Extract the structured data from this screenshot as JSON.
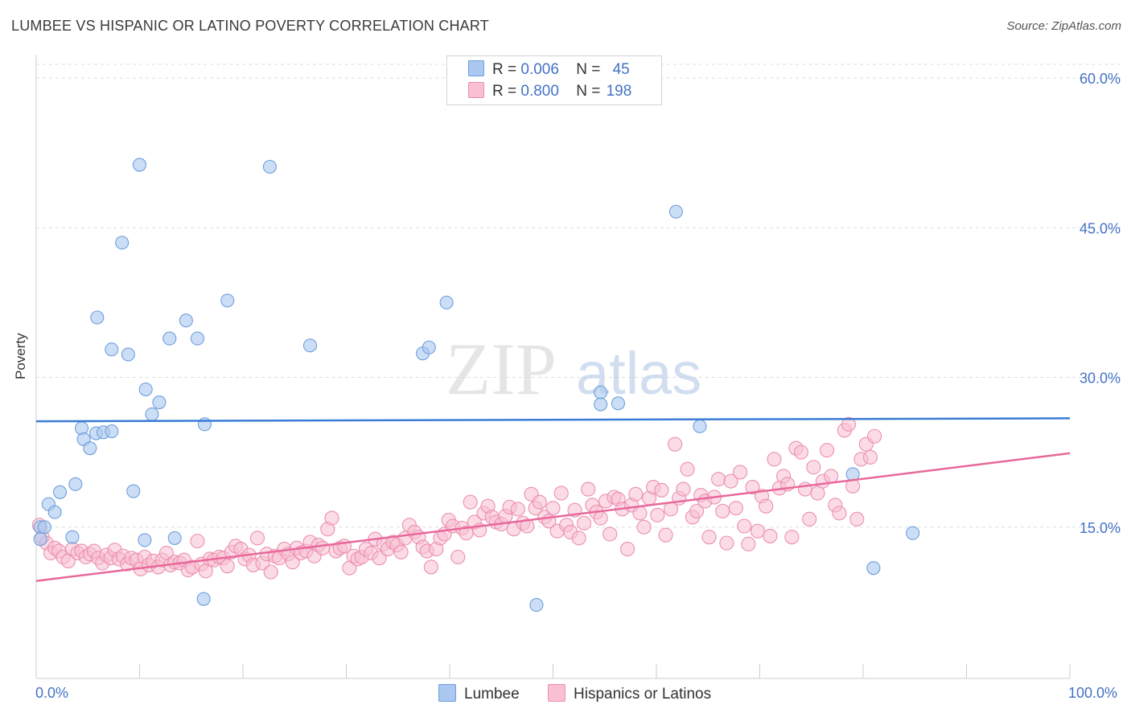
{
  "header": {
    "title": "LUMBEE VS HISPANIC OR LATINO POVERTY CORRELATION CHART",
    "source": "Source: ZipAtlas.com"
  },
  "watermark": {
    "zip": "ZIP",
    "atlas": "atlas"
  },
  "legend_top": [
    {
      "series": "Lumbee",
      "r_label": "R =",
      "r_value": "0.006",
      "n_label": "N =",
      "n_value": "45",
      "color": "#aac8f0",
      "border": "#6e9fdc"
    },
    {
      "series": "Hispanics or Latinos",
      "r_label": "R =",
      "r_value": "0.800",
      "n_label": "N =",
      "n_value": "198",
      "color": "#f8c0d2",
      "border": "#ec8fae"
    }
  ],
  "legend_bottom": [
    {
      "label": "Lumbee",
      "color": "#aac8f0",
      "border": "#6e9fdc"
    },
    {
      "label": "Hispanics or Latinos",
      "color": "#f8c0d2",
      "border": "#ec8fae"
    }
  ],
  "chart_data": {
    "type": "scatter",
    "title": "LUMBEE VS HISPANIC OR LATINO POVERTY CORRELATION CHART",
    "ylabel": "Poverty",
    "xlim": [
      0,
      100
    ],
    "ylim": [
      0,
      60
    ],
    "x_tick_labels": [
      "0.0%",
      "100.0%"
    ],
    "y_ticks": [
      15,
      30,
      45,
      60
    ],
    "y_tick_labels": [
      "15.0%",
      "30.0%",
      "45.0%",
      "60.0%"
    ],
    "grid": true,
    "colors": {
      "lumbee_line": "#3a7bd5",
      "hispanic_line": "#e8689a",
      "tick_label": "#4472c4"
    },
    "series": [
      {
        "name": "Lumbee",
        "trend": {
          "x": [
            0,
            100
          ],
          "y": [
            25.6,
            25.9
          ]
        },
        "points": [
          [
            0.4,
            15.0
          ],
          [
            0.8,
            15.0
          ],
          [
            1.2,
            17.3
          ],
          [
            1.8,
            16.5
          ],
          [
            2.3,
            18.5
          ],
          [
            3.5,
            14.0
          ],
          [
            3.8,
            19.3
          ],
          [
            4.4,
            24.9
          ],
          [
            4.6,
            23.8
          ],
          [
            5.2,
            22.9
          ],
          [
            5.8,
            24.4
          ],
          [
            6.5,
            24.5
          ],
          [
            7.3,
            24.6
          ],
          [
            5.9,
            36.0
          ],
          [
            7.3,
            32.8
          ],
          [
            8.3,
            43.5
          ],
          [
            8.9,
            32.3
          ],
          [
            9.4,
            18.6
          ],
          [
            10.0,
            51.3
          ],
          [
            10.6,
            28.8
          ],
          [
            10.5,
            13.7
          ],
          [
            11.2,
            26.3
          ],
          [
            11.9,
            27.5
          ],
          [
            12.9,
            33.9
          ],
          [
            13.4,
            13.9
          ],
          [
            14.5,
            35.7
          ],
          [
            15.6,
            33.9
          ],
          [
            16.3,
            25.3
          ],
          [
            16.2,
            7.8
          ],
          [
            18.5,
            37.7
          ],
          [
            22.6,
            51.1
          ],
          [
            26.5,
            33.2
          ],
          [
            37.4,
            32.4
          ],
          [
            38.0,
            33.0
          ],
          [
            39.7,
            37.5
          ],
          [
            48.4,
            7.2
          ],
          [
            54.6,
            28.5
          ],
          [
            54.6,
            27.3
          ],
          [
            56.3,
            27.4
          ],
          [
            61.9,
            46.6
          ],
          [
            64.2,
            25.1
          ],
          [
            79.0,
            20.3
          ],
          [
            81.0,
            10.9
          ],
          [
            84.8,
            14.4
          ],
          [
            0.4,
            13.8
          ]
        ]
      },
      {
        "name": "Hispanics or Latinos",
        "trend": {
          "x": [
            0,
            100
          ],
          "y": [
            9.6,
            22.4
          ]
        },
        "points": [
          [
            0.3,
            15.2
          ],
          [
            0.6,
            14.0
          ],
          [
            1.0,
            13.4
          ],
          [
            1.4,
            12.4
          ],
          [
            1.8,
            12.9
          ],
          [
            2.2,
            12.6
          ],
          [
            2.6,
            12.0
          ],
          [
            3.1,
            11.6
          ],
          [
            3.5,
            12.8
          ],
          [
            4.0,
            12.4
          ],
          [
            4.4,
            12.6
          ],
          [
            4.8,
            12.0
          ],
          [
            5.2,
            12.3
          ],
          [
            5.6,
            12.6
          ],
          [
            6.0,
            11.9
          ],
          [
            6.4,
            11.4
          ],
          [
            6.8,
            12.2
          ],
          [
            7.2,
            11.9
          ],
          [
            7.6,
            12.7
          ],
          [
            8.0,
            11.8
          ],
          [
            8.4,
            12.1
          ],
          [
            8.8,
            11.3
          ],
          [
            9.2,
            11.9
          ],
          [
            9.7,
            11.7
          ],
          [
            10.1,
            10.8
          ],
          [
            10.5,
            12.0
          ],
          [
            10.9,
            11.2
          ],
          [
            11.3,
            11.6
          ],
          [
            11.8,
            11.0
          ],
          [
            12.2,
            11.7
          ],
          [
            12.6,
            12.4
          ],
          [
            13.0,
            11.2
          ],
          [
            13.4,
            11.5
          ],
          [
            13.9,
            11.4
          ],
          [
            14.3,
            11.7
          ],
          [
            14.7,
            10.7
          ],
          [
            15.1,
            11.0
          ],
          [
            15.6,
            13.6
          ],
          [
            16.0,
            11.3
          ],
          [
            16.4,
            10.6
          ],
          [
            16.8,
            11.8
          ],
          [
            17.2,
            11.7
          ],
          [
            17.7,
            12.0
          ],
          [
            18.1,
            11.9
          ],
          [
            18.5,
            11.1
          ],
          [
            18.9,
            12.5
          ],
          [
            19.3,
            13.1
          ],
          [
            19.8,
            12.8
          ],
          [
            20.2,
            11.8
          ],
          [
            20.6,
            12.2
          ],
          [
            21.0,
            11.2
          ],
          [
            21.4,
            13.9
          ],
          [
            21.9,
            11.4
          ],
          [
            22.3,
            12.3
          ],
          [
            22.7,
            10.5
          ],
          [
            23.1,
            12.1
          ],
          [
            23.5,
            11.9
          ],
          [
            24.0,
            12.8
          ],
          [
            24.4,
            12.3
          ],
          [
            24.8,
            11.5
          ],
          [
            25.2,
            12.9
          ],
          [
            25.6,
            12.4
          ],
          [
            26.1,
            12.6
          ],
          [
            26.5,
            13.5
          ],
          [
            26.9,
            12.1
          ],
          [
            27.3,
            13.2
          ],
          [
            27.7,
            12.9
          ],
          [
            28.2,
            14.8
          ],
          [
            28.6,
            15.9
          ],
          [
            29.0,
            12.6
          ],
          [
            29.4,
            12.9
          ],
          [
            29.8,
            13.1
          ],
          [
            30.3,
            10.9
          ],
          [
            30.7,
            12.1
          ],
          [
            31.1,
            11.8
          ],
          [
            31.5,
            12.0
          ],
          [
            31.9,
            12.8
          ],
          [
            32.4,
            12.4
          ],
          [
            32.8,
            13.8
          ],
          [
            33.2,
            11.9
          ],
          [
            33.6,
            13.3
          ],
          [
            34.0,
            12.8
          ],
          [
            34.5,
            13.5
          ],
          [
            34.9,
            13.2
          ],
          [
            35.3,
            12.5
          ],
          [
            35.7,
            13.9
          ],
          [
            36.1,
            15.2
          ],
          [
            36.6,
            14.5
          ],
          [
            37.0,
            14.0
          ],
          [
            37.4,
            13.0
          ],
          [
            37.8,
            12.6
          ],
          [
            38.2,
            11.0
          ],
          [
            38.7,
            12.8
          ],
          [
            39.1,
            13.9
          ],
          [
            39.5,
            14.3
          ],
          [
            39.9,
            15.7
          ],
          [
            40.3,
            15.1
          ],
          [
            40.8,
            12.0
          ],
          [
            41.2,
            14.9
          ],
          [
            41.6,
            14.4
          ],
          [
            42.0,
            17.5
          ],
          [
            42.4,
            15.5
          ],
          [
            42.9,
            14.7
          ],
          [
            43.3,
            16.4
          ],
          [
            43.7,
            17.1
          ],
          [
            44.1,
            16.0
          ],
          [
            44.5,
            15.5
          ],
          [
            45.0,
            15.3
          ],
          [
            45.4,
            16.1
          ],
          [
            45.8,
            17.0
          ],
          [
            46.2,
            14.8
          ],
          [
            46.6,
            16.8
          ],
          [
            47.1,
            15.4
          ],
          [
            47.5,
            15.1
          ],
          [
            47.9,
            18.3
          ],
          [
            48.3,
            16.9
          ],
          [
            48.7,
            17.5
          ],
          [
            49.2,
            16.0
          ],
          [
            49.6,
            15.6
          ],
          [
            50.0,
            16.9
          ],
          [
            50.4,
            14.6
          ],
          [
            50.8,
            18.4
          ],
          [
            51.3,
            15.2
          ],
          [
            51.7,
            14.5
          ],
          [
            52.1,
            16.7
          ],
          [
            52.5,
            13.9
          ],
          [
            53.0,
            15.4
          ],
          [
            53.4,
            18.8
          ],
          [
            53.8,
            17.2
          ],
          [
            54.2,
            16.5
          ],
          [
            54.6,
            15.9
          ],
          [
            55.1,
            17.6
          ],
          [
            55.5,
            14.3
          ],
          [
            55.9,
            18.0
          ],
          [
            56.3,
            17.8
          ],
          [
            56.7,
            16.8
          ],
          [
            57.2,
            12.8
          ],
          [
            57.6,
            17.2
          ],
          [
            58.0,
            18.3
          ],
          [
            58.4,
            16.4
          ],
          [
            58.8,
            15.0
          ],
          [
            59.3,
            17.9
          ],
          [
            59.7,
            19.0
          ],
          [
            60.1,
            16.2
          ],
          [
            60.5,
            18.7
          ],
          [
            60.9,
            14.2
          ],
          [
            61.4,
            16.8
          ],
          [
            61.8,
            23.3
          ],
          [
            62.2,
            17.9
          ],
          [
            62.6,
            18.8
          ],
          [
            63.0,
            20.8
          ],
          [
            63.5,
            16.0
          ],
          [
            63.9,
            16.6
          ],
          [
            64.3,
            18.2
          ],
          [
            64.7,
            17.6
          ],
          [
            65.1,
            14.0
          ],
          [
            65.6,
            18.0
          ],
          [
            66.0,
            19.8
          ],
          [
            66.4,
            16.6
          ],
          [
            66.8,
            13.4
          ],
          [
            67.2,
            19.6
          ],
          [
            67.7,
            16.9
          ],
          [
            68.1,
            20.5
          ],
          [
            68.5,
            15.1
          ],
          [
            68.9,
            13.3
          ],
          [
            69.3,
            19.0
          ],
          [
            69.8,
            14.6
          ],
          [
            70.2,
            18.1
          ],
          [
            70.6,
            17.1
          ],
          [
            71.0,
            14.1
          ],
          [
            71.4,
            21.8
          ],
          [
            71.9,
            18.9
          ],
          [
            72.3,
            20.1
          ],
          [
            72.7,
            19.3
          ],
          [
            73.1,
            14.0
          ],
          [
            73.5,
            22.9
          ],
          [
            74.0,
            22.5
          ],
          [
            74.4,
            18.8
          ],
          [
            74.8,
            15.8
          ],
          [
            75.2,
            21.0
          ],
          [
            75.6,
            18.4
          ],
          [
            76.1,
            19.6
          ],
          [
            76.5,
            22.7
          ],
          [
            76.9,
            20.1
          ],
          [
            77.3,
            17.2
          ],
          [
            77.7,
            16.4
          ],
          [
            78.2,
            24.7
          ],
          [
            78.6,
            25.3
          ],
          [
            79.0,
            19.1
          ],
          [
            79.4,
            15.8
          ],
          [
            79.8,
            21.8
          ],
          [
            80.3,
            23.3
          ],
          [
            80.7,
            22.0
          ],
          [
            81.1,
            24.1
          ]
        ]
      }
    ]
  }
}
